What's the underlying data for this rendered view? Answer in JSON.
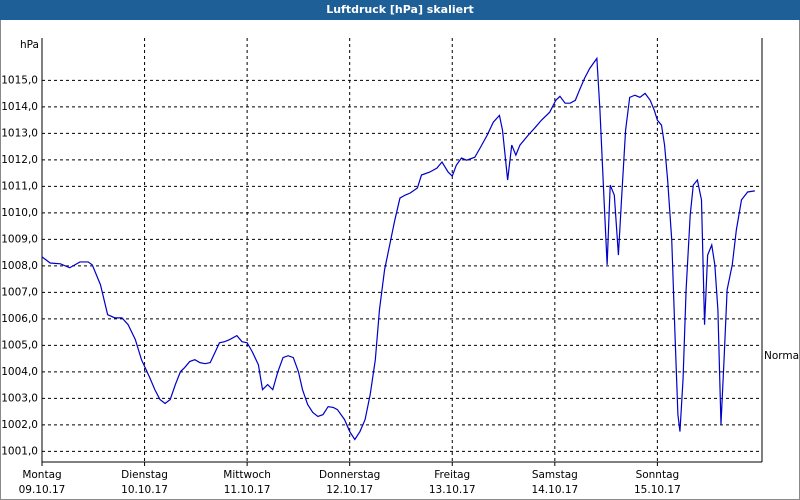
{
  "chart_data": {
    "type": "line",
    "title": "Luftdruck [hPa] skaliert",
    "y_unit_label": "hPa",
    "annotation": {
      "text": "Normal",
      "value": 1004.6
    },
    "xlim": [
      0,
      7.02
    ],
    "ylim": [
      1000.6,
      1016.6
    ],
    "xticks": [
      {
        "value": 0,
        "label": "Montag",
        "date": "09.10.17"
      },
      {
        "value": 1,
        "label": "Dienstag",
        "date": "10.10.17"
      },
      {
        "value": 2,
        "label": "Mittwoch",
        "date": "11.10.17"
      },
      {
        "value": 3,
        "label": "Donnerstag",
        "date": "12.10.17"
      },
      {
        "value": 4,
        "label": "Freitag",
        "date": "13.10.17"
      },
      {
        "value": 5,
        "label": "Samstag",
        "date": "14.10.17"
      },
      {
        "value": 6,
        "label": "Sonntag",
        "date": "15.10.17"
      }
    ],
    "yticks": [
      {
        "value": 1001,
        "label": "1001,0"
      },
      {
        "value": 1002,
        "label": "1002,0"
      },
      {
        "value": 1003,
        "label": "1003,0"
      },
      {
        "value": 1004,
        "label": "1004,0"
      },
      {
        "value": 1005,
        "label": "1005,0"
      },
      {
        "value": 1006,
        "label": "1006,0"
      },
      {
        "value": 1007,
        "label": "1007,0"
      },
      {
        "value": 1008,
        "label": "1008,0"
      },
      {
        "value": 1009,
        "label": "1009,0"
      },
      {
        "value": 1010,
        "label": "1010,0"
      },
      {
        "value": 1011,
        "label": "1011,0"
      },
      {
        "value": 1012,
        "label": "1012,0"
      },
      {
        "value": 1013,
        "label": "1013,0"
      },
      {
        "value": 1014,
        "label": "1014,0"
      },
      {
        "value": 1015,
        "label": "1015,0"
      }
    ],
    "grid": true,
    "color": "#0000c8",
    "x": [
      0,
      0.08,
      0.18,
      0.27,
      0.32,
      0.37,
      0.45,
      0.49,
      0.57,
      0.64,
      0.71,
      0.78,
      0.84,
      0.91,
      0.97,
      1.05,
      1.1,
      1.15,
      1.2,
      1.25,
      1.3,
      1.35,
      1.39,
      1.44,
      1.49,
      1.54,
      1.59,
      1.64,
      1.69,
      1.73,
      1.78,
      1.83,
      1.9,
      1.95,
      2.0,
      2.05,
      2.11,
      2.15,
      2.2,
      2.25,
      2.3,
      2.35,
      2.4,
      2.45,
      2.5,
      2.54,
      2.59,
      2.64,
      2.69,
      2.74,
      2.79,
      2.84,
      2.88,
      2.95,
      3.0,
      3.05,
      3.1,
      3.15,
      3.2,
      3.25,
      3.29,
      3.34,
      3.39,
      3.44,
      3.49,
      3.54,
      3.59,
      3.66,
      3.7,
      3.78,
      3.85,
      3.9,
      3.96,
      4.0,
      4.04,
      4.09,
      4.14,
      4.22,
      4.27,
      4.34,
      4.4,
      4.46,
      4.49,
      4.54,
      4.58,
      4.62,
      4.66,
      4.74,
      4.81,
      4.87,
      4.95,
      5.01,
      5.05,
      5.1,
      5.15,
      5.2,
      5.24,
      5.29,
      5.34,
      5.41,
      5.44,
      5.48,
      5.51,
      5.54,
      5.58,
      5.62,
      5.65,
      5.69,
      5.73,
      5.78,
      5.83,
      5.88,
      5.93,
      5.97,
      6.0,
      6.04,
      6.07,
      6.1,
      6.14,
      6.17,
      6.2,
      6.22,
      6.25,
      6.28,
      6.32,
      6.35,
      6.39,
      6.43,
      6.46,
      6.49,
      6.53,
      6.56,
      6.59,
      6.62,
      6.65,
      6.68,
      6.73,
      6.77,
      6.82,
      6.88,
      6.95
    ],
    "values": [
      1008.34,
      1008.11,
      1008.08,
      1007.93,
      1008.04,
      1008.15,
      1008.15,
      1008.04,
      1007.29,
      1006.16,
      1006.04,
      1006.04,
      1005.78,
      1005.22,
      1004.46,
      1003.79,
      1003.33,
      1002.96,
      1002.81,
      1002.96,
      1003.52,
      1004.01,
      1004.16,
      1004.39,
      1004.46,
      1004.35,
      1004.31,
      1004.35,
      1004.76,
      1005.1,
      1005.14,
      1005.22,
      1005.37,
      1005.14,
      1005.1,
      1004.76,
      1004.27,
      1003.33,
      1003.52,
      1003.33,
      1004.01,
      1004.54,
      1004.61,
      1004.54,
      1004.01,
      1003.33,
      1002.77,
      1002.47,
      1002.32,
      1002.39,
      1002.69,
      1002.66,
      1002.58,
      1002.2,
      1001.75,
      1001.45,
      1001.75,
      1002.2,
      1003.15,
      1004.46,
      1006.34,
      1007.85,
      1008.79,
      1009.73,
      1010.56,
      1010.67,
      1010.75,
      1010.94,
      1011.43,
      1011.54,
      1011.69,
      1011.92,
      1011.54,
      1011.39,
      1011.8,
      1012.07,
      1011.99,
      1012.1,
      1012.44,
      1012.93,
      1013.42,
      1013.68,
      1013.12,
      1011.24,
      1012.56,
      1012.18,
      1012.56,
      1012.93,
      1013.23,
      1013.5,
      1013.8,
      1014.25,
      1014.4,
      1014.14,
      1014.14,
      1014.25,
      1014.63,
      1015.08,
      1015.45,
      1015.83,
      1013.87,
      1010.49,
      1008.04,
      1011.05,
      1010.67,
      1008.41,
      1010.49,
      1013.12,
      1014.36,
      1014.44,
      1014.36,
      1014.51,
      1014.25,
      1013.87,
      1013.5,
      1013.31,
      1012.56,
      1011.24,
      1008.98,
      1005.59,
      1002.39,
      1001.75,
      1003.71,
      1007.1,
      1009.92,
      1011.05,
      1011.24,
      1010.49,
      1005.78,
      1008.41,
      1008.79,
      1008.04,
      1006.34,
      1002.02,
      1004.46,
      1007.1,
      1008.04,
      1009.36,
      1010.49,
      1010.79,
      1010.83
    ]
  }
}
